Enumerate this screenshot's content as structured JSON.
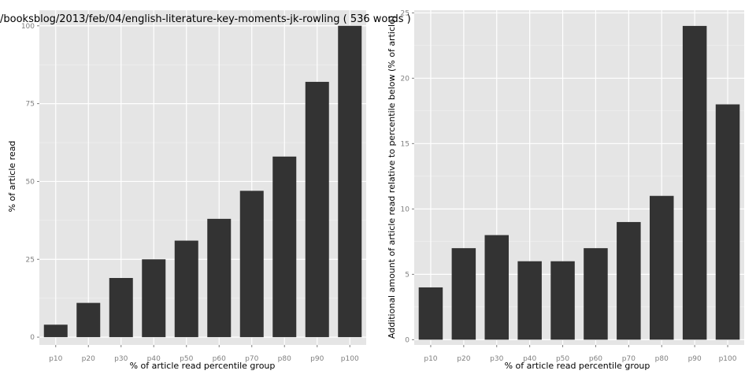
{
  "chart_data": [
    {
      "type": "bar",
      "title": "/booksblog/2013/feb/04/english-literature-key-moments-jk-rowling ( 536 words )",
      "xlabel": "% of article read percentile group",
      "ylabel": "% of article read",
      "categories": [
        "p10",
        "p20",
        "p30",
        "p40",
        "p50",
        "p60",
        "p70",
        "p80",
        "p90",
        "p100"
      ],
      "values": [
        4,
        11,
        19,
        25,
        31,
        38,
        47,
        58,
        82,
        100
      ],
      "ylim": [
        -2.5,
        105
      ],
      "yticks": [
        0,
        25,
        50,
        75,
        100
      ],
      "grid": true,
      "colors": {
        "panel": "#e5e5e5",
        "grid": "#ffffff",
        "bar": "#333333"
      }
    },
    {
      "type": "bar",
      "title": "",
      "xlabel": "% of article read percentile group",
      "ylabel": "Additional amount of article read relative to percentile below (% of article)",
      "categories": [
        "p10",
        "p20",
        "p30",
        "p40",
        "p50",
        "p60",
        "p70",
        "p80",
        "p90",
        "p100"
      ],
      "values": [
        4,
        7,
        8,
        6,
        6,
        7,
        9,
        11,
        24,
        18
      ],
      "ylim": [
        -0.4,
        25.2
      ],
      "yticks": [
        0,
        5,
        10,
        15,
        20,
        25
      ],
      "grid": true,
      "colors": {
        "panel": "#e5e5e5",
        "grid": "#ffffff",
        "bar": "#333333"
      }
    }
  ]
}
